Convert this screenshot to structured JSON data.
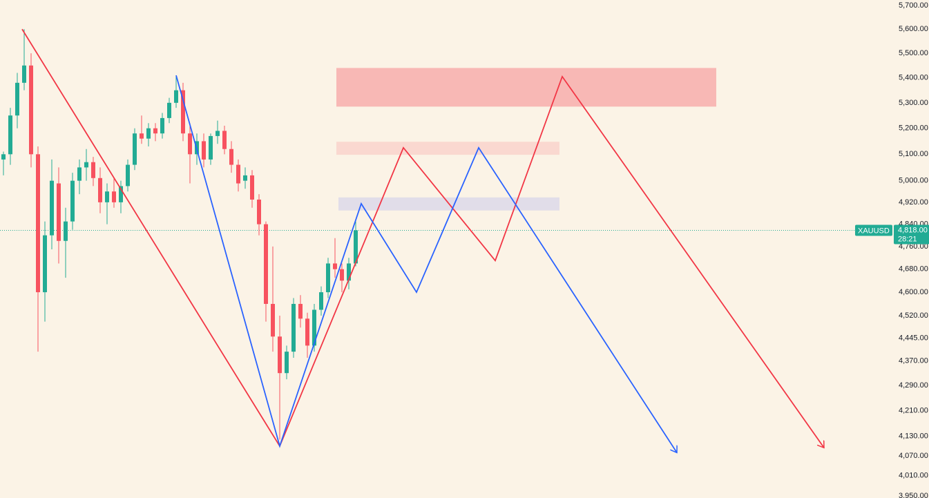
{
  "chart_data": {
    "type": "candlestick",
    "symbol": "XAUUSD",
    "log_scale": true,
    "ylim": [
      3950,
      5700
    ],
    "yticks": [
      {
        "value": 5700,
        "label": "5,700.00"
      },
      {
        "value": 5600,
        "label": "5,600.00"
      },
      {
        "value": 5500,
        "label": "5,500.00"
      },
      {
        "value": 5400,
        "label": "5,400.00"
      },
      {
        "value": 5300,
        "label": "5,300.00"
      },
      {
        "value": 5200,
        "label": "5,200.00"
      },
      {
        "value": 5100,
        "label": "5,100.00"
      },
      {
        "value": 5000,
        "label": "5,000.00"
      },
      {
        "value": 4920,
        "label": "4,920.00"
      },
      {
        "value": 4840,
        "label": "4,840.00"
      },
      {
        "value": 4760,
        "label": "4,760.00"
      },
      {
        "value": 4680,
        "label": "4,680.00"
      },
      {
        "value": 4600,
        "label": "4,600.00"
      },
      {
        "value": 4520,
        "label": "4,520.00"
      },
      {
        "value": 4445,
        "label": "4,445.00"
      },
      {
        "value": 4370,
        "label": "4,370.00"
      },
      {
        "value": 4290,
        "label": "4,290.00"
      },
      {
        "value": 4210,
        "label": "4,210.00"
      },
      {
        "value": 4130,
        "label": "4,130.00"
      },
      {
        "value": 4070,
        "label": "4,070.00"
      },
      {
        "value": 4010,
        "label": "4,010.00"
      },
      {
        "value": 3950,
        "label": "3,950.00"
      }
    ],
    "xlim": [
      0,
      124
    ],
    "last_price": {
      "value": 4818,
      "label": "4,818.00"
    },
    "countdown": "28:21",
    "up_color": "#22ab94",
    "down_color": "#f7525f",
    "candles": [
      [
        5080,
        5110,
        5020,
        5100
      ],
      [
        5100,
        5280,
        5060,
        5250
      ],
      [
        5250,
        5420,
        5200,
        5380
      ],
      [
        5380,
        5600,
        5350,
        5450
      ],
      [
        5450,
        5500,
        5050,
        5100
      ],
      [
        5100,
        5130,
        4400,
        4600
      ],
      [
        4600,
        4850,
        4500,
        4800
      ],
      [
        4800,
        5080,
        4750,
        5000
      ],
      [
        4990,
        5050,
        4700,
        4780
      ],
      [
        4780,
        4900,
        4650,
        4850
      ],
      [
        4850,
        5030,
        4820,
        5000
      ],
      [
        5000,
        5080,
        4950,
        5050
      ],
      [
        5050,
        5120,
        5000,
        5070
      ],
      [
        5070,
        5090,
        4980,
        5010
      ],
      [
        5010,
        5050,
        4880,
        4920
      ],
      [
        4920,
        4990,
        4840,
        4960
      ],
      [
        4960,
        5010,
        4900,
        4920
      ],
      [
        4920,
        5000,
        4880,
        4980
      ],
      [
        4980,
        5080,
        4960,
        5060
      ],
      [
        5060,
        5200,
        5040,
        5180
      ],
      [
        5180,
        5250,
        5140,
        5160
      ],
      [
        5160,
        5220,
        5130,
        5200
      ],
      [
        5200,
        5220,
        5150,
        5180
      ],
      [
        5180,
        5260,
        5160,
        5240
      ],
      [
        5240,
        5320,
        5220,
        5300
      ],
      [
        5300,
        5410,
        5280,
        5350
      ],
      [
        5350,
        5380,
        5150,
        5180
      ],
      [
        5180,
        5220,
        4990,
        5100
      ],
      [
        5100,
        5180,
        5060,
        5150
      ],
      [
        5150,
        5180,
        5050,
        5080
      ],
      [
        5080,
        5180,
        5060,
        5170
      ],
      [
        5170,
        5230,
        5140,
        5190
      ],
      [
        5190,
        5210,
        5100,
        5120
      ],
      [
        5120,
        5150,
        5030,
        5060
      ],
      [
        5060,
        5080,
        4960,
        4990
      ],
      [
        5000,
        5050,
        4970,
        5020
      ],
      [
        5020,
        5040,
        4900,
        4930
      ],
      [
        4930,
        4950,
        4800,
        4840
      ],
      [
        4840,
        4850,
        4500,
        4560
      ],
      [
        4560,
        4760,
        4400,
        4450
      ],
      [
        4450,
        4520,
        4120,
        4330
      ],
      [
        4330,
        4420,
        4310,
        4400
      ],
      [
        4400,
        4580,
        4380,
        4560
      ],
      [
        4560,
        4590,
        4480,
        4510
      ],
      [
        4510,
        4530,
        4380,
        4420
      ],
      [
        4420,
        4560,
        4400,
        4540
      ],
      [
        4540,
        4620,
        4520,
        4600
      ],
      [
        4600,
        4720,
        4580,
        4700
      ],
      [
        4700,
        4790,
        4650,
        4680
      ],
      [
        4680,
        4700,
        4600,
        4640
      ],
      [
        4640,
        4720,
        4610,
        4700
      ],
      [
        4700,
        4850,
        4690,
        4818
      ]
    ],
    "zones": [
      {
        "color": "#f8b8b5",
        "x": [
          48.7,
          103.7
        ],
        "y": [
          5285,
          5440
        ]
      },
      {
        "color": "#fad8d0",
        "x": [
          48.7,
          81
        ],
        "y": [
          5098,
          5148
        ]
      },
      {
        "color": "#e1dde9",
        "x": [
          49,
          81
        ],
        "y": [
          4890,
          4938
        ]
      }
    ],
    "lines": [
      {
        "color": "#f23645",
        "x": [
          3.2,
          40.5,
          58.4,
          71.7,
          81.4,
          119.3
        ],
        "y": [
          5600,
          4100,
          5125,
          4710,
          5405,
          4095
        ]
      },
      {
        "color": "#2962ff",
        "x": [
          25.5,
          40.5,
          52.3,
          60.3,
          69.3,
          98
        ],
        "y": [
          5410,
          4100,
          4915,
          4600,
          5125,
          4080
        ]
      }
    ]
  }
}
